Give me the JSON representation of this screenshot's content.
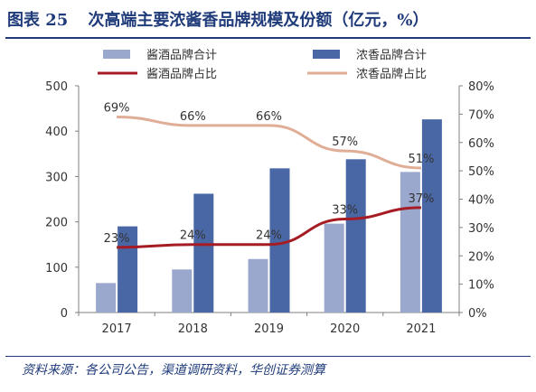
{
  "header": {
    "figure_label": "图表 25",
    "title": "次高端主要浓酱香品牌规模及份额（亿元，%）"
  },
  "footer": {
    "source": "资料来源：各公司公告，渠道调研资料，华创证券测算"
  },
  "colors": {
    "title": "#1f3b7a",
    "bar_jiang": "#9aa8cd",
    "bar_nong": "#4a67a5",
    "line_jiang": "#a51c24",
    "line_nong": "#e0ad96"
  },
  "chart_data": {
    "type": "bar",
    "categories": [
      "2017",
      "2018",
      "2019",
      "2020",
      "2021"
    ],
    "series": [
      {
        "name": "酱酒品牌合计",
        "kind": "bar",
        "axis": "left",
        "values": [
          65,
          95,
          118,
          196,
          310
        ]
      },
      {
        "name": "浓香品牌合计",
        "kind": "bar",
        "axis": "left",
        "values": [
          190,
          262,
          318,
          338,
          426
        ]
      },
      {
        "name": "酱酒品牌占比",
        "kind": "line",
        "axis": "right",
        "values": [
          23,
          24,
          24,
          33,
          37
        ],
        "labels": [
          "23%",
          "24%",
          "24%",
          "33%",
          "37%"
        ]
      },
      {
        "name": "浓香品牌占比",
        "kind": "line",
        "axis": "right",
        "values": [
          69,
          66,
          66,
          57,
          51
        ],
        "labels": [
          "69%",
          "66%",
          "66%",
          "57%",
          "51%"
        ]
      }
    ],
    "ylim_left": [
      0,
      500
    ],
    "left_ticks": [
      "0",
      "100",
      "200",
      "300",
      "400",
      "500"
    ],
    "ylim_right": [
      0,
      80
    ],
    "right_ticks": [
      "0%",
      "10%",
      "20%",
      "30%",
      "40%",
      "50%",
      "60%",
      "70%",
      "80%"
    ],
    "grid": false,
    "legend_position": "top"
  }
}
